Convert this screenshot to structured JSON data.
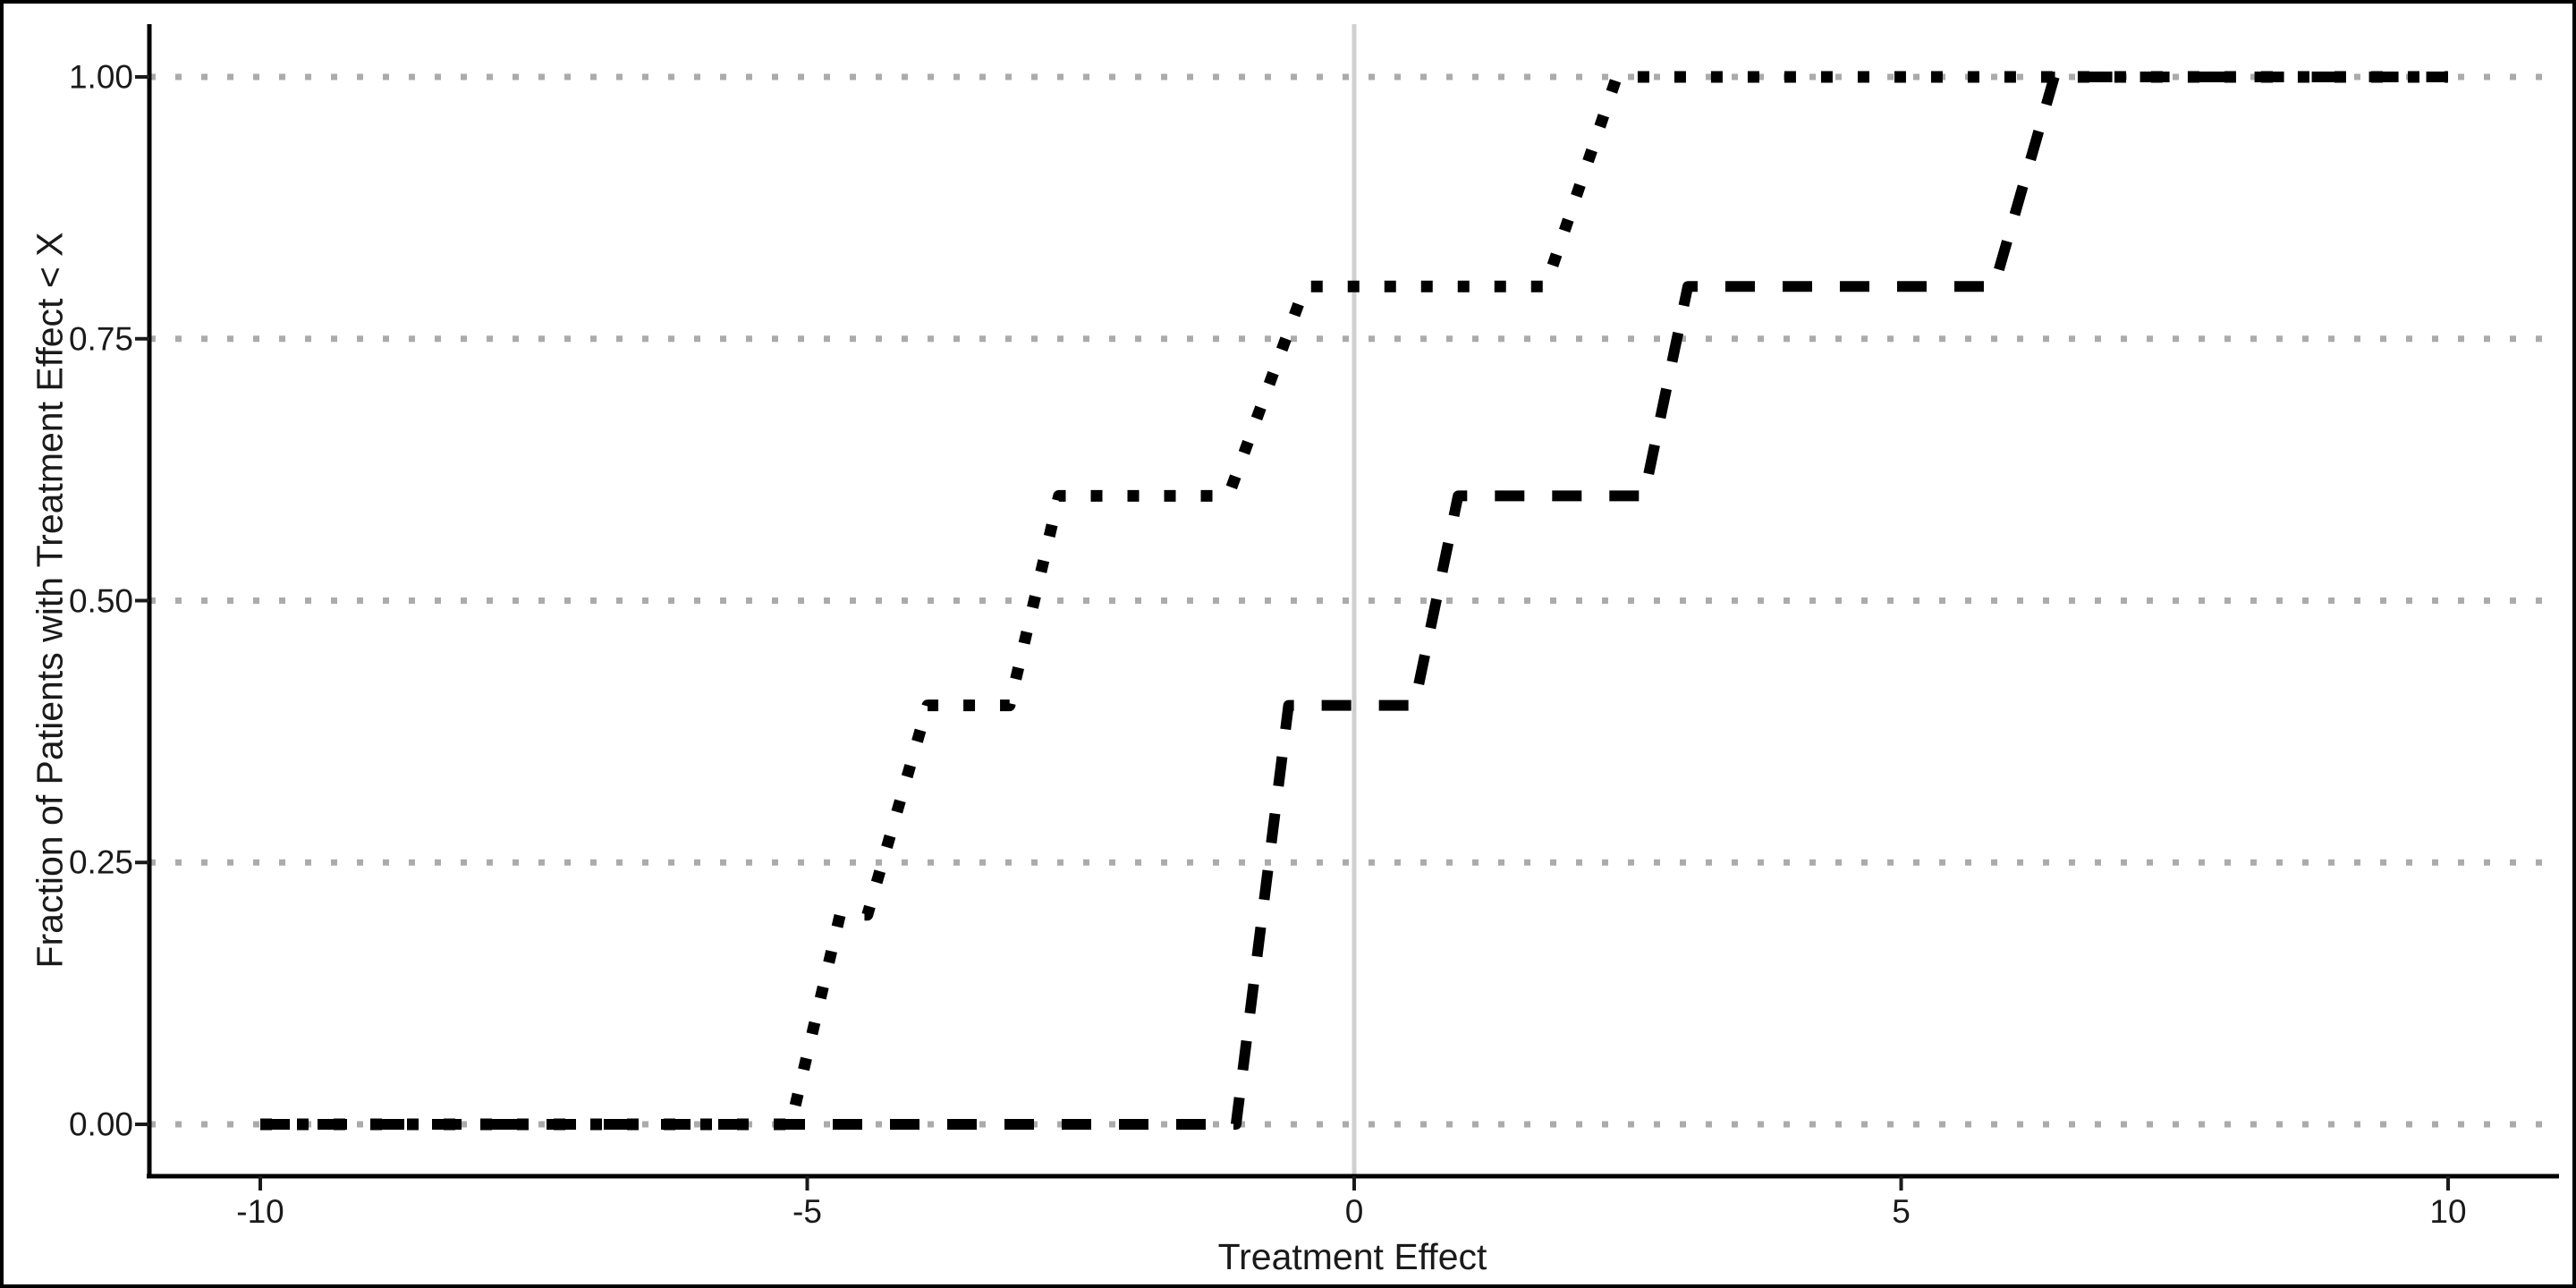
{
  "chart_data": {
    "type": "line",
    "subtype": "ecdf-step-curves",
    "title": "",
    "xlabel": "Treatment Effect",
    "ylabel": "Fraction of Patients with Treatment Effect < X",
    "xticks": [
      -10,
      -5,
      0,
      5,
      10
    ],
    "xtick_labels": [
      "-10",
      "-5",
      "0",
      "5",
      "10"
    ],
    "yticks": [
      0,
      0.25,
      0.5,
      0.75,
      1
    ],
    "ytick_labels": [
      "0.00",
      "0.25",
      "0.50",
      "0.75",
      "1.00"
    ],
    "xlim": [
      -11,
      11
    ],
    "ylim": [
      -0.05,
      1.05
    ],
    "grid": "horizontal-dotted-at-yticks",
    "grid_color": "#ababab",
    "reference_vline_x": 0,
    "reference_vline_color": "#d0d0d0",
    "legend": "none",
    "series": [
      {
        "name": "dotted-curve",
        "linestyle": "dotted",
        "color": "#000000",
        "points": [
          [
            -10,
            0
          ],
          [
            -5.15,
            0
          ],
          [
            -4.7,
            0.2
          ],
          [
            -4.45,
            0.2
          ],
          [
            -3.9,
            0.4
          ],
          [
            -3.15,
            0.4
          ],
          [
            -2.7,
            0.6
          ],
          [
            -1.15,
            0.6
          ],
          [
            -0.45,
            0.8
          ],
          [
            1.75,
            0.8
          ],
          [
            2.4,
            1
          ],
          [
            10,
            1
          ]
        ],
        "jump_x_approx": [
          -4.9,
          -4.2,
          -2.9,
          -0.8,
          2.1
        ],
        "fraction_levels": [
          0,
          0.2,
          0.4,
          0.6,
          0.8,
          1.0
        ]
      },
      {
        "name": "dashed-curve",
        "linestyle": "dashed",
        "color": "#000000",
        "points": [
          [
            -10,
            0
          ],
          [
            -1.08,
            0
          ],
          [
            -0.6,
            0.4
          ],
          [
            0.55,
            0.4
          ],
          [
            0.95,
            0.6
          ],
          [
            2.65,
            0.6
          ],
          [
            3.05,
            0.8
          ],
          [
            5.85,
            0.8
          ],
          [
            6.4,
            1
          ],
          [
            10,
            1
          ]
        ],
        "jump_x_approx": [
          -0.8,
          -0.8,
          0.75,
          2.85,
          6.1
        ],
        "fraction_levels": [
          0,
          0.4,
          0.6,
          0.8,
          1.0
        ]
      }
    ]
  }
}
